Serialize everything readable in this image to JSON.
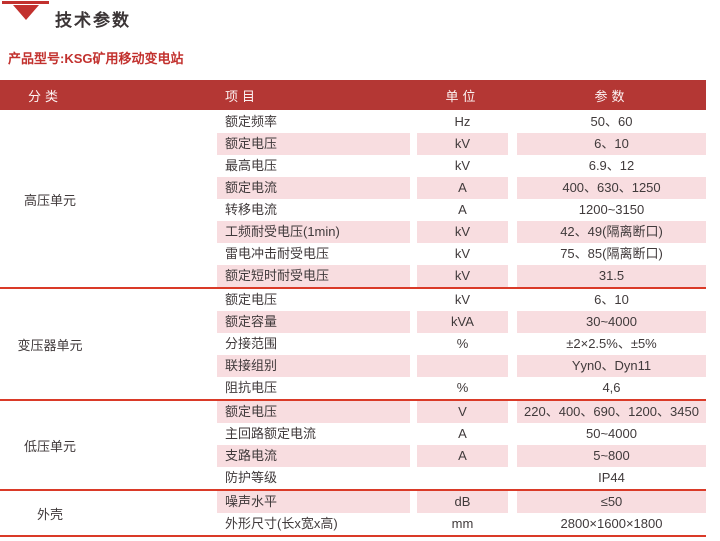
{
  "page": {
    "title": "技术参数",
    "subtitle": "产品型号:KSG矿用移动变电站"
  },
  "colors": {
    "header_bg": "#b43734",
    "row_pink": "#f8dde0",
    "separator": "#da3a28",
    "accent_red": "#c2312e",
    "text": "#403a3b"
  },
  "icons": {
    "section_marker": "red-down-triangle-with-bar"
  },
  "table": {
    "headers": [
      "分类",
      "项目",
      "单位",
      "参数"
    ],
    "sections": [
      {
        "category": "高压单元",
        "rows": [
          {
            "item": "额定频率",
            "unit": "Hz",
            "value": "50、60"
          },
          {
            "item": "额定电压",
            "unit": "kV",
            "value": "6、10"
          },
          {
            "item": "最高电压",
            "unit": "kV",
            "value": "6.9、12"
          },
          {
            "item": "额定电流",
            "unit": "A",
            "value": "400、630、1250"
          },
          {
            "item": "转移电流",
            "unit": "A",
            "value": "1200~3150"
          },
          {
            "item": "工频耐受电压(1min)",
            "unit": "kV",
            "value": "42、49(隔离断口)"
          },
          {
            "item": "雷电冲击耐受电压",
            "unit": "kV",
            "value": "75、85(隔离断口)"
          },
          {
            "item": "额定短时耐受电压",
            "unit": "kV",
            "value": "31.5"
          }
        ]
      },
      {
        "category": "变压器单元",
        "rows": [
          {
            "item": "额定电压",
            "unit": "kV",
            "value": "6、10"
          },
          {
            "item": "额定容量",
            "unit": "kVA",
            "value": "30~4000"
          },
          {
            "item": "分接范围",
            "unit": "%",
            "value": "±2×2.5%、±5%"
          },
          {
            "item": "联接组别",
            "unit": "",
            "value": "Yyn0、Dyn11"
          },
          {
            "item": "阻抗电压",
            "unit": "%",
            "value": "4,6"
          }
        ]
      },
      {
        "category": "低压单元",
        "rows": [
          {
            "item": "额定电压",
            "unit": "V",
            "value": "220、400、690、1200、3450"
          },
          {
            "item": "主回路额定电流",
            "unit": "A",
            "value": "50~4000"
          },
          {
            "item": "支路电流",
            "unit": "A",
            "value": "5~800"
          },
          {
            "item": "防护等级",
            "unit": "",
            "value": "IP44"
          }
        ]
      },
      {
        "category": "外壳",
        "rows": [
          {
            "item": "噪声水平",
            "unit": "dB",
            "value": "≤50"
          },
          {
            "item": "外形尺寸(长x宽x高)",
            "unit": "mm",
            "value": "2800×1600×1800"
          }
        ]
      }
    ]
  }
}
